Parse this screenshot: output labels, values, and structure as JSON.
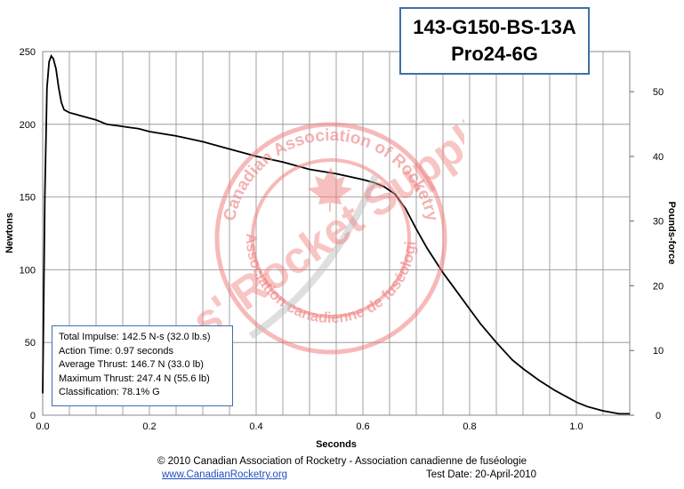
{
  "chart_data": {
    "type": "line",
    "title": "143-G150-BS-13A",
    "subtitle": "Pro24-6G",
    "xlabel": "Seconds",
    "ylabel": "Newtons",
    "y2label": "Pounds-force",
    "xlim": [
      0,
      1.1
    ],
    "ylim": [
      0,
      250
    ],
    "y2lim": [
      0,
      56.2
    ],
    "x_ticks": [
      "0.0",
      "0.2",
      "0.4",
      "0.6",
      "0.8",
      "1.0"
    ],
    "y_ticks": [
      "0",
      "50",
      "100",
      "150",
      "200",
      "250"
    ],
    "y2_ticks": [
      "0",
      "10",
      "20",
      "30",
      "40",
      "50"
    ],
    "grid": true,
    "series": [
      {
        "color": "#000000",
        "x": [
          0,
          0.004,
          0.008,
          0.012,
          0.016,
          0.02,
          0.025,
          0.03,
          0.035,
          0.04,
          0.05,
          0.06,
          0.07,
          0.08,
          0.1,
          0.12,
          0.14,
          0.16,
          0.18,
          0.2,
          0.25,
          0.3,
          0.35,
          0.4,
          0.45,
          0.5,
          0.55,
          0.6,
          0.62,
          0.64,
          0.66,
          0.68,
          0.7,
          0.72,
          0.75,
          0.78,
          0.8,
          0.82,
          0.85,
          0.88,
          0.9,
          0.93,
          0.96,
          1.0,
          1.02,
          1.05,
          1.08,
          1.1
        ],
        "values": [
          15,
          150,
          225,
          243,
          247,
          245,
          238,
          225,
          215,
          210,
          208,
          207,
          206,
          205,
          203,
          200,
          199,
          198,
          197,
          195,
          192,
          188,
          183,
          178,
          174,
          169,
          166,
          162,
          160,
          157,
          152,
          142,
          128,
          115,
          98,
          83,
          73,
          63,
          50,
          38,
          32,
          24,
          17,
          9,
          6,
          3,
          1,
          1
        ]
      }
    ]
  },
  "stats": {
    "impulse": "Total Impulse: 142.5 N-s (32.0 lb.s)",
    "action_time": "Action Time: 0.97 seconds",
    "avg_thrust": "Average Thrust: 146.7 N (33.0 lb)",
    "max_thrust": "Maximum Thrust: 247.4 N (55.6 lb)",
    "classification": "Classification: 78.1% G"
  },
  "footer": {
    "copyright": "© 2010 Canadian Association of Rocketry - Association canadienne de fuséologie",
    "link": "www.CanadianRocketry.org",
    "date": "Test  Date: 20-April-2010"
  },
  "watermark": {
    "stamp_outer": "Canadian Association of Rocketry",
    "stamp_inner": "Association canadienne de fuséologie",
    "overlay": "Chris' Rocket Supplies"
  }
}
